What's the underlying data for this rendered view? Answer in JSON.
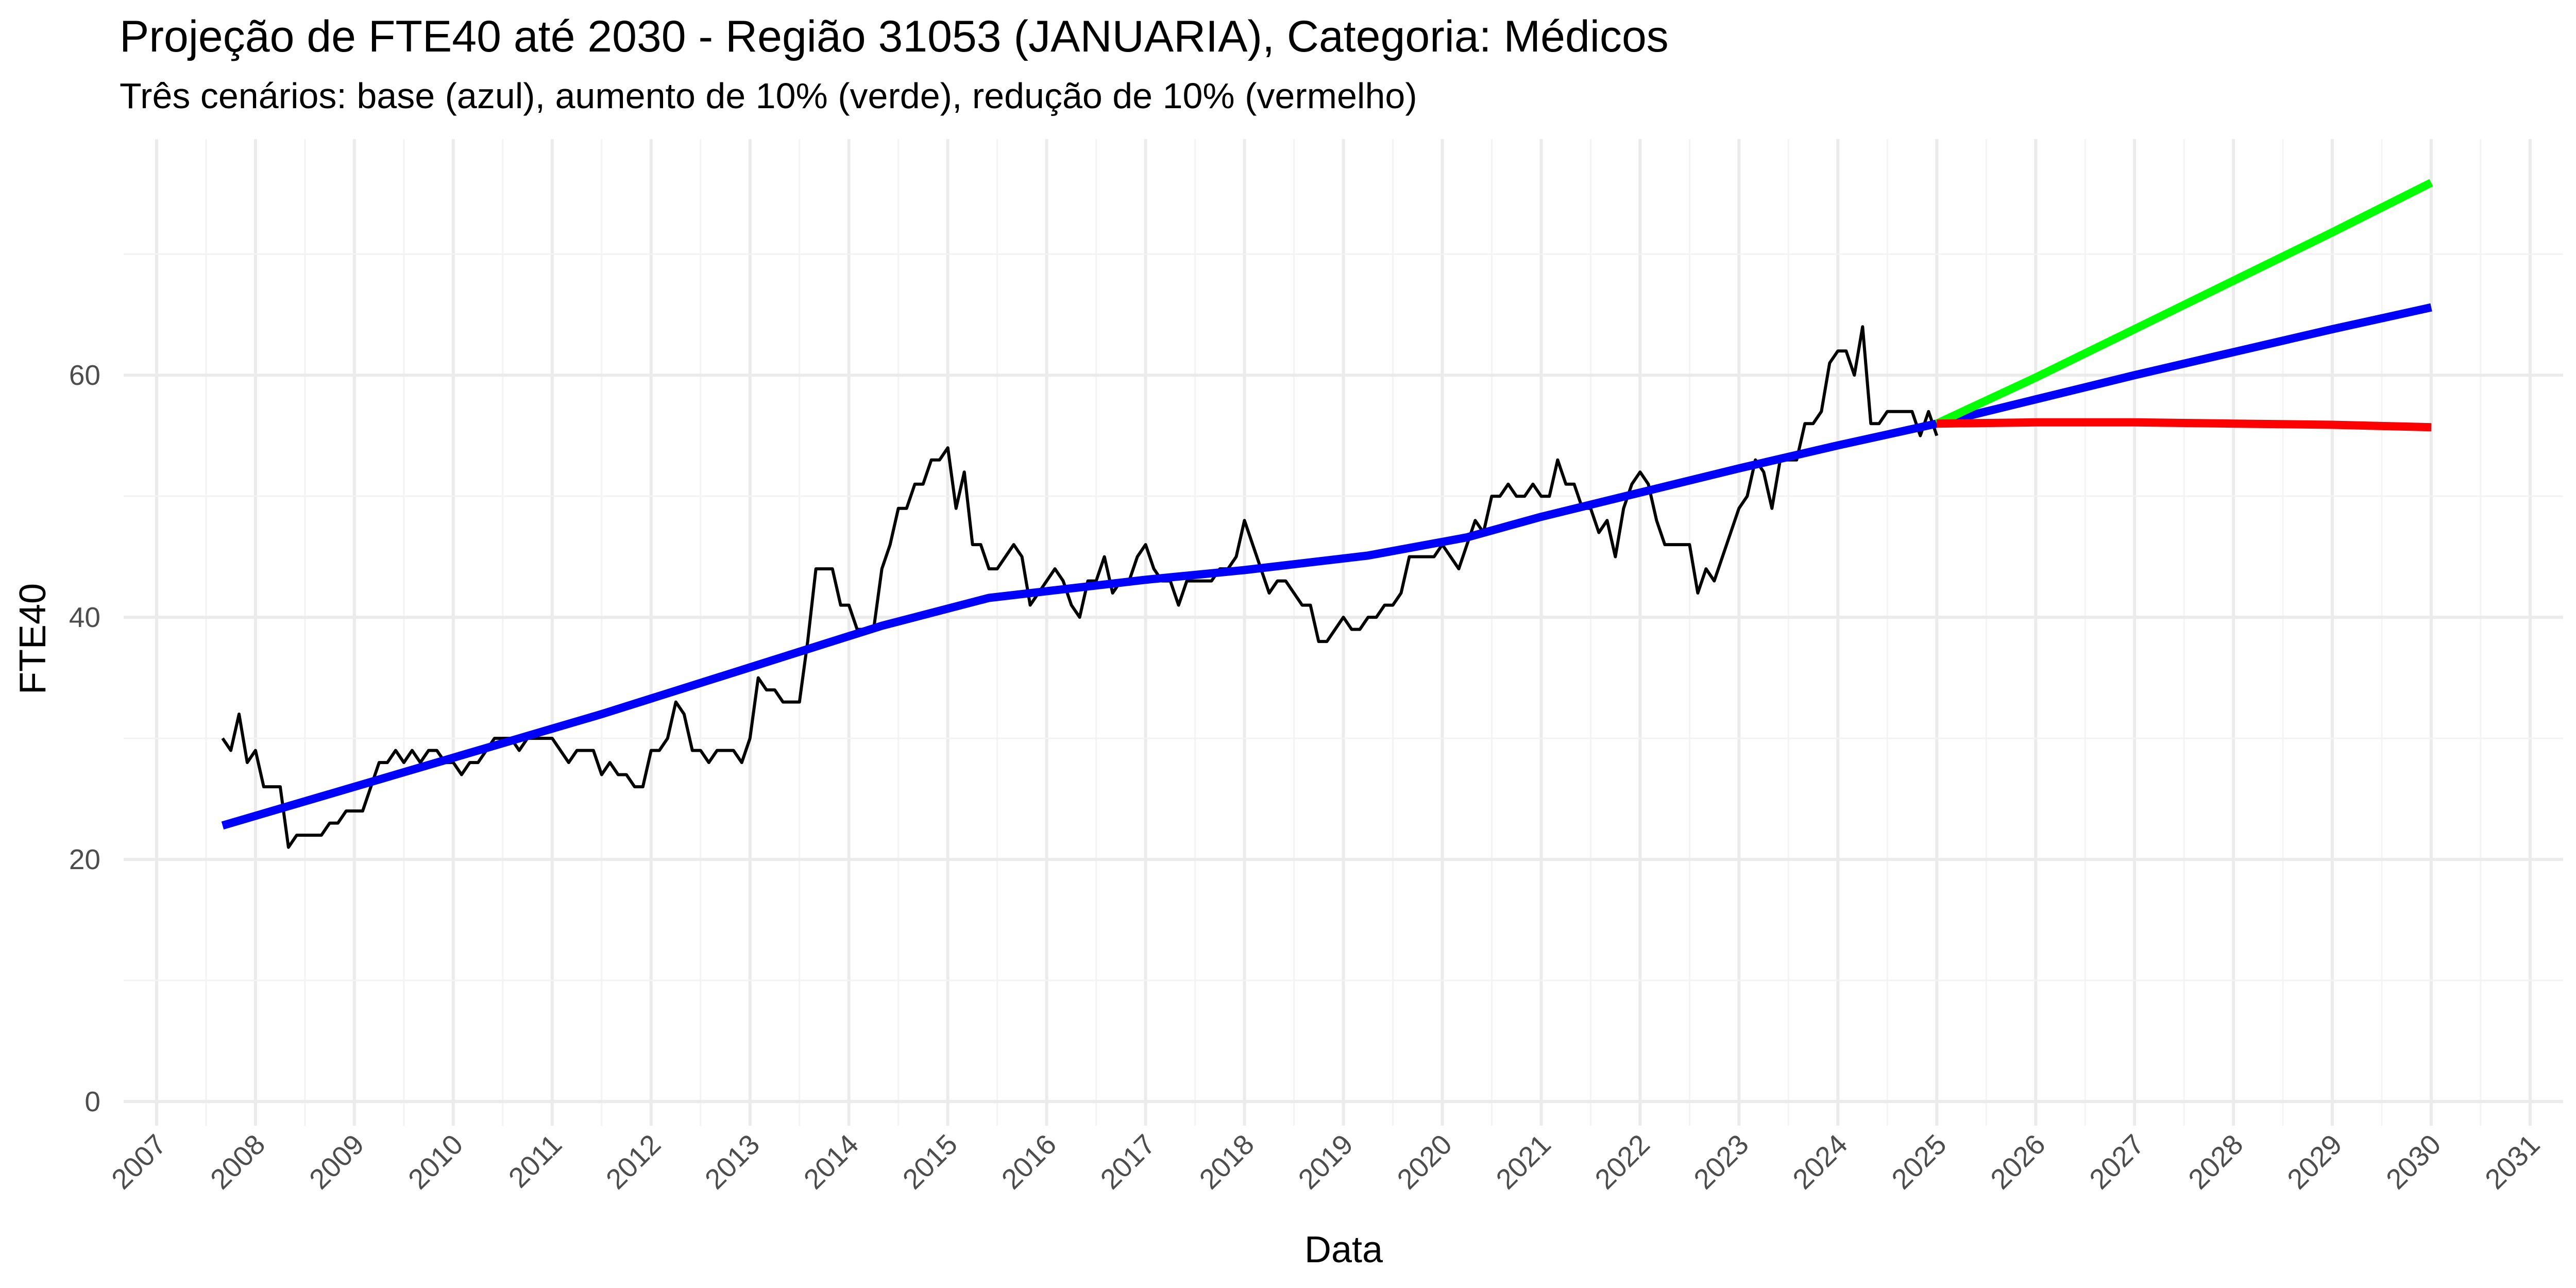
{
  "chart_data": {
    "type": "line",
    "title": "Projeção de FTE40 até 2030 - Região 31053 (JANUARIA), Categoria: Médicos",
    "subtitle": "Três cenários: base (azul), aumento de 10% (verde), redução de 10% (vermelho)",
    "xlabel": "Data",
    "ylabel": "FTE40",
    "x_scale": "date",
    "xlim": [
      "2006-09-01",
      "2031-05-01"
    ],
    "ylim": [
      -2,
      79.5
    ],
    "x_ticks": [
      "2007",
      "2008",
      "2009",
      "2010",
      "2011",
      "2012",
      "2013",
      "2014",
      "2015",
      "2016",
      "2017",
      "2018",
      "2019",
      "2020",
      "2021",
      "2022",
      "2023",
      "2024",
      "2025",
      "2026",
      "2027",
      "2028",
      "2029",
      "2030",
      "2031"
    ],
    "y_ticks": [
      0,
      20,
      40,
      60
    ],
    "grid": true,
    "legend": "none",
    "colors": {
      "observed": "#000000",
      "base": "#0000ff",
      "increase": "#00ff00",
      "decrease": "#ff0000"
    },
    "series": [
      {
        "color": "#000000",
        "x": [
          "2007-09",
          "2007-10",
          "2007-11",
          "2007-12",
          "2008-01",
          "2008-02",
          "2008-03",
          "2008-04",
          "2008-05",
          "2008-06",
          "2008-07",
          "2008-08",
          "2008-09",
          "2008-10",
          "2008-11",
          "2008-12",
          "2009-01",
          "2009-02",
          "2009-03",
          "2009-04",
          "2009-05",
          "2009-06",
          "2009-07",
          "2009-08",
          "2009-09",
          "2009-10",
          "2009-11",
          "2009-12",
          "2010-01",
          "2010-02",
          "2010-03",
          "2010-04",
          "2010-05",
          "2010-06",
          "2010-07",
          "2010-08",
          "2010-09",
          "2010-10",
          "2010-11",
          "2010-12",
          "2011-01",
          "2011-02",
          "2011-03",
          "2011-04",
          "2011-05",
          "2011-06",
          "2011-07",
          "2011-08",
          "2011-09",
          "2011-10",
          "2011-11",
          "2011-12",
          "2012-01",
          "2012-02",
          "2012-03",
          "2012-04",
          "2012-05",
          "2012-06",
          "2012-07",
          "2012-08",
          "2012-09",
          "2012-10",
          "2012-11",
          "2012-12",
          "2013-01",
          "2013-02",
          "2013-03",
          "2013-04",
          "2013-05",
          "2013-06",
          "2013-07",
          "2013-08",
          "2013-09",
          "2013-10",
          "2013-11",
          "2013-12",
          "2014-01",
          "2014-02",
          "2014-03",
          "2014-04",
          "2014-05",
          "2014-06",
          "2014-07",
          "2014-08",
          "2014-09",
          "2014-10",
          "2014-11",
          "2014-12",
          "2015-01",
          "2015-02",
          "2015-03",
          "2015-04",
          "2015-05",
          "2015-06",
          "2015-07",
          "2015-08",
          "2015-09",
          "2015-10",
          "2015-11",
          "2015-12",
          "2016-01",
          "2016-02",
          "2016-03",
          "2016-04",
          "2016-05",
          "2016-06",
          "2016-07",
          "2016-08",
          "2016-09",
          "2016-10",
          "2016-11",
          "2016-12",
          "2017-01",
          "2017-02",
          "2017-03",
          "2017-04",
          "2017-05",
          "2017-06",
          "2017-07",
          "2017-08",
          "2017-09",
          "2017-10",
          "2017-11",
          "2017-12",
          "2018-01",
          "2018-02",
          "2018-03",
          "2018-04",
          "2018-05",
          "2018-06",
          "2018-07",
          "2018-08",
          "2018-09",
          "2018-10",
          "2018-11",
          "2018-12",
          "2019-01",
          "2019-02",
          "2019-03",
          "2019-04",
          "2019-05",
          "2019-06",
          "2019-07",
          "2019-08",
          "2019-09",
          "2019-10",
          "2019-11",
          "2019-12",
          "2020-01",
          "2020-02",
          "2020-03",
          "2020-04",
          "2020-05",
          "2020-06",
          "2020-07",
          "2020-08",
          "2020-09",
          "2020-10",
          "2020-11",
          "2020-12",
          "2021-01",
          "2021-02",
          "2021-03",
          "2021-04",
          "2021-05",
          "2021-06",
          "2021-07",
          "2021-08",
          "2021-09",
          "2021-10",
          "2021-11",
          "2021-12",
          "2022-01",
          "2022-02",
          "2022-03",
          "2022-04",
          "2022-05",
          "2022-06",
          "2022-07",
          "2022-08",
          "2022-09",
          "2022-10",
          "2022-11",
          "2022-12",
          "2023-01",
          "2023-02",
          "2023-03",
          "2023-04",
          "2023-05",
          "2023-06",
          "2023-07",
          "2023-08",
          "2023-09",
          "2023-10",
          "2023-11",
          "2023-12",
          "2024-01",
          "2024-02",
          "2024-03",
          "2024-04",
          "2024-05",
          "2024-06",
          "2024-07",
          "2024-08",
          "2024-09",
          "2024-10",
          "2024-11",
          "2024-12",
          "2025-01"
        ],
        "values": [
          30,
          29,
          32,
          28,
          29,
          26,
          26,
          26,
          21,
          22,
          22,
          22,
          22,
          23,
          23,
          24,
          24,
          24,
          26,
          28,
          28,
          29,
          28,
          29,
          28,
          29,
          29,
          28,
          28,
          27,
          28,
          28,
          29,
          30,
          30,
          30,
          29,
          30,
          30,
          30,
          30,
          29,
          28,
          29,
          29,
          29,
          27,
          28,
          27,
          27,
          26,
          26,
          29,
          29,
          30,
          33,
          32,
          29,
          29,
          28,
          29,
          29,
          29,
          28,
          30,
          35,
          34,
          34,
          33,
          33,
          33,
          38,
          44,
          44,
          44,
          41,
          41,
          39,
          39,
          39,
          44,
          46,
          49,
          49,
          51,
          51,
          53,
          53,
          54,
          49,
          52,
          46,
          46,
          44,
          44,
          45,
          46,
          45,
          41,
          42,
          43,
          44,
          43,
          41,
          40,
          43,
          43,
          45,
          42,
          43,
          43,
          45,
          46,
          44,
          43,
          43,
          41,
          43,
          43,
          43,
          43,
          44,
          44,
          45,
          48,
          46,
          44,
          42,
          43,
          43,
          42,
          41,
          41,
          38,
          38,
          39,
          40,
          39,
          39,
          40,
          40,
          41,
          41,
          42,
          45,
          45,
          45,
          45,
          46,
          45,
          44,
          46,
          48,
          47,
          50,
          50,
          51,
          50,
          50,
          51,
          50,
          50,
          53,
          51,
          51,
          49,
          49,
          47,
          48,
          45,
          49,
          51,
          52,
          51,
          48,
          46,
          46,
          46,
          46,
          42,
          44,
          43,
          45,
          47,
          49,
          50,
          53,
          52,
          49,
          53,
          53,
          53,
          56,
          56,
          57,
          61,
          62,
          62,
          60,
          64,
          56,
          56,
          57,
          57,
          57,
          57,
          55,
          57,
          55
        ]
      },
      {
        "color": "#0000ff",
        "x": [
          "2007-09",
          "2011-07",
          "2014-05",
          "2015-06",
          "2017-01",
          "2018-01",
          "2019-04",
          "2020-04",
          "2021-01",
          "2022-01",
          "2023-01",
          "2024-01",
          "2025-01",
          "2026-01",
          "2027-01",
          "2028-01",
          "2029-01",
          "2030-01"
        ],
        "values": [
          22.8,
          32,
          39.3,
          41.6,
          43.1,
          43.9,
          45.1,
          46.6,
          48.3,
          50.3,
          52.3,
          54.2,
          56,
          58,
          60,
          61.9,
          63.8,
          65.6
        ]
      },
      {
        "color": "#00ff00",
        "x": [
          "2025-01",
          "2026-01",
          "2027-01",
          "2028-01",
          "2029-01",
          "2030-01"
        ],
        "values": [
          56,
          59.8,
          63.8,
          67.8,
          71.8,
          75.9
        ]
      },
      {
        "color": "#ff0000",
        "x": [
          "2025-01",
          "2026-01",
          "2027-01",
          "2028-01",
          "2029-01",
          "2030-01"
        ],
        "values": [
          56,
          56.1,
          56.1,
          56,
          55.9,
          55.7
        ]
      }
    ]
  }
}
